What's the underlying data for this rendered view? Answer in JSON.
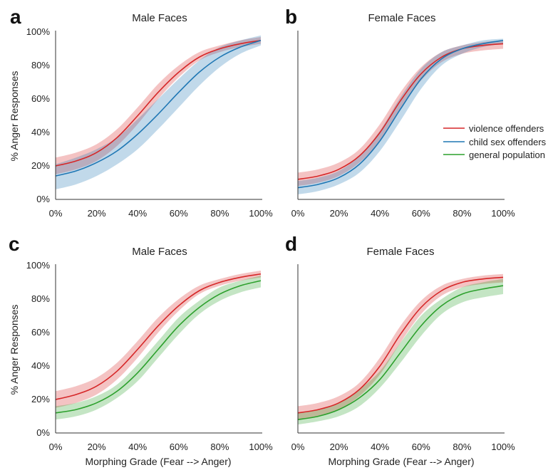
{
  "legend": {
    "labels": [
      "violence offenders",
      "child sex offenders",
      "general population"
    ],
    "colors": [
      "#d62728",
      "#1f77b4",
      "#2ca02c"
    ],
    "placement": "right, inside panel b"
  },
  "shared_labels": {
    "ylabel": "% Anger Responses",
    "xlabel": "Morphing Grade (Fear --> Anger)"
  },
  "chart_data": [
    {
      "panel": "a",
      "type": "line",
      "title": "Male Faces",
      "xlim": [
        0,
        100
      ],
      "ylim": [
        0,
        100
      ],
      "x_ticks": [
        "0%",
        "20%",
        "40%",
        "60%",
        "80%",
        "100%"
      ],
      "y_ticks": [
        "0%",
        "20%",
        "40%",
        "60%",
        "80%",
        "100%"
      ],
      "x": [
        0,
        10,
        20,
        30,
        40,
        50,
        60,
        70,
        80,
        90,
        100
      ],
      "series": [
        {
          "name": "violence offenders",
          "color": "#d62728",
          "values": [
            20,
            23,
            28,
            37,
            50,
            64,
            76,
            85,
            90,
            93,
            95
          ],
          "ci_lower": [
            15,
            18,
            23,
            32,
            45,
            60,
            73,
            83,
            88,
            91,
            93
          ],
          "ci_upper": [
            25,
            28,
            33,
            42,
            55,
            69,
            80,
            88,
            92,
            95,
            97
          ]
        },
        {
          "name": "child sex offenders",
          "color": "#1f77b4",
          "values": [
            14,
            17,
            22,
            29,
            39,
            51,
            64,
            76,
            85,
            91,
            95
          ],
          "ci_lower": [
            6,
            9,
            14,
            21,
            30,
            42,
            55,
            68,
            79,
            87,
            92
          ],
          "ci_upper": [
            21,
            25,
            30,
            37,
            48,
            60,
            72,
            83,
            91,
            95,
            98
          ]
        }
      ]
    },
    {
      "panel": "b",
      "type": "line",
      "title": "Female Faces",
      "xlim": [
        0,
        100
      ],
      "ylim": [
        0,
        100
      ],
      "x_ticks": [
        "0%",
        "20%",
        "40%",
        "60%",
        "80%",
        "100%"
      ],
      "y_ticks": [],
      "x": [
        0,
        10,
        20,
        30,
        40,
        50,
        60,
        70,
        80,
        90,
        100
      ],
      "series": [
        {
          "name": "violence offenders",
          "color": "#d62728",
          "values": [
            12,
            14,
            18,
            26,
            40,
            59,
            75,
            85,
            90,
            92,
            93
          ],
          "ci_lower": [
            8,
            10,
            14,
            22,
            35,
            54,
            71,
            82,
            87,
            89,
            90
          ],
          "ci_upper": [
            16,
            18,
            22,
            30,
            45,
            64,
            79,
            88,
            92,
            94,
            95
          ]
        },
        {
          "name": "child sex offenders",
          "color": "#1f77b4",
          "values": [
            7,
            9,
            13,
            21,
            35,
            54,
            72,
            84,
            90,
            93,
            95
          ],
          "ci_lower": [
            3,
            5,
            9,
            16,
            29,
            47,
            66,
            80,
            87,
            91,
            93
          ],
          "ci_upper": [
            11,
            13,
            17,
            26,
            41,
            61,
            78,
            88,
            92,
            95,
            96
          ]
        }
      ]
    },
    {
      "panel": "c",
      "type": "line",
      "title": "Male Faces",
      "xlim": [
        0,
        100
      ],
      "ylim": [
        0,
        100
      ],
      "x_ticks": [
        "0%",
        "20%",
        "40%",
        "60%",
        "80%",
        "100%"
      ],
      "y_ticks": [
        "0%",
        "20%",
        "40%",
        "60%",
        "80%",
        "100%"
      ],
      "x": [
        0,
        10,
        20,
        30,
        40,
        50,
        60,
        70,
        80,
        90,
        100
      ],
      "series": [
        {
          "name": "violence offenders",
          "color": "#d62728",
          "values": [
            20,
            23,
            28,
            37,
            50,
            64,
            76,
            85,
            90,
            93,
            95
          ],
          "ci_lower": [
            15,
            18,
            23,
            32,
            45,
            60,
            73,
            83,
            88,
            91,
            93
          ],
          "ci_upper": [
            25,
            28,
            33,
            42,
            55,
            69,
            80,
            88,
            92,
            95,
            97
          ]
        },
        {
          "name": "general population",
          "color": "#2ca02c",
          "values": [
            12,
            14,
            18,
            25,
            36,
            50,
            64,
            75,
            83,
            88,
            91
          ],
          "ci_lower": [
            8,
            10,
            14,
            21,
            31,
            45,
            59,
            71,
            79,
            84,
            87
          ],
          "ci_upper": [
            16,
            18,
            22,
            29,
            41,
            55,
            69,
            79,
            87,
            91,
            94
          ]
        }
      ]
    },
    {
      "panel": "d",
      "type": "line",
      "title": "Female Faces",
      "xlim": [
        0,
        100
      ],
      "ylim": [
        0,
        100
      ],
      "x_ticks": [
        "0%",
        "20%",
        "40%",
        "60%",
        "80%",
        "100%"
      ],
      "y_ticks": [],
      "x": [
        0,
        10,
        20,
        30,
        40,
        50,
        60,
        70,
        80,
        90,
        100
      ],
      "series": [
        {
          "name": "violence offenders",
          "color": "#d62728",
          "values": [
            12,
            14,
            18,
            26,
            40,
            59,
            75,
            85,
            90,
            92,
            93
          ],
          "ci_lower": [
            8,
            10,
            14,
            22,
            35,
            54,
            71,
            82,
            87,
            89,
            90
          ],
          "ci_upper": [
            16,
            18,
            22,
            30,
            45,
            64,
            79,
            88,
            92,
            94,
            95
          ]
        },
        {
          "name": "general population",
          "color": "#2ca02c",
          "values": [
            8,
            10,
            14,
            21,
            32,
            48,
            64,
            76,
            83,
            86,
            88
          ],
          "ci_lower": [
            5,
            7,
            10,
            16,
            27,
            42,
            58,
            71,
            78,
            81,
            83
          ],
          "ci_upper": [
            12,
            14,
            18,
            26,
            37,
            54,
            70,
            80,
            87,
            90,
            92
          ]
        }
      ]
    }
  ]
}
